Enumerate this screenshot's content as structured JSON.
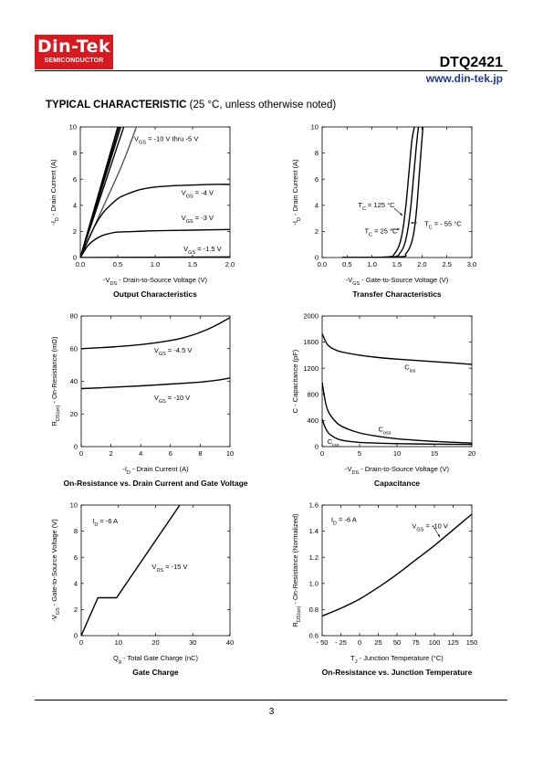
{
  "header": {
    "logo_name": "Din-Tek",
    "logo_sub": "SEMICONDUCTOR",
    "part_number": "DTQ2421",
    "url": "www.din-tek.jp",
    "logo_color": "#d8191f",
    "url_color": "#1f3c93"
  },
  "section": {
    "title": "TYPICAL CHARACTERISTIC",
    "note": "(25 °C, unless otherwise noted)"
  },
  "page_number": "3",
  "chart_data": [
    {
      "id": "output",
      "type": "line",
      "title": "Output Characteristics",
      "xlabel": "-V_DS - Drain-to-Source Voltage (V)",
      "ylabel": "-I_D - Drain Current (A)",
      "xlim": [
        0,
        2.0
      ],
      "ylim": [
        0,
        10
      ],
      "xticks": [
        "0.0",
        "0.5",
        "1.0",
        "1.5",
        "2.0"
      ],
      "yticks": [
        "0",
        "2",
        "4",
        "6",
        "8",
        "10"
      ],
      "series": [
        {
          "label": "V_GS = -10 V thru -5 V",
          "x": [
            0,
            0.25,
            0.5
          ],
          "y": [
            0,
            5,
            10
          ]
        },
        {
          "x": [
            0,
            0.26,
            0.52
          ],
          "y": [
            0,
            5,
            10
          ]
        },
        {
          "x": [
            0,
            0.27,
            0.54
          ],
          "y": [
            0,
            5,
            10
          ]
        },
        {
          "x": [
            0,
            0.29,
            0.58
          ],
          "y": [
            0,
            5,
            10
          ]
        },
        {
          "x": [
            0,
            0.3,
            0.55,
            0.75
          ],
          "y": [
            0,
            3.8,
            7.0,
            10
          ]
        },
        {
          "label": "V_GS = -4 V",
          "x": [
            0,
            0.1,
            0.2,
            0.3,
            0.4,
            0.5,
            0.6,
            0.8,
            1.0,
            1.25,
            1.5,
            1.75,
            2.0
          ],
          "y": [
            0,
            1.3,
            2.5,
            3.4,
            4.0,
            4.5,
            4.8,
            5.2,
            5.4,
            5.5,
            5.55,
            5.6,
            5.6
          ]
        },
        {
          "label": "V_GS = -3 V",
          "x": [
            0,
            0.1,
            0.2,
            0.3,
            0.4,
            0.5,
            0.75,
            1.0,
            1.5,
            2.0
          ],
          "y": [
            0,
            0.9,
            1.4,
            1.7,
            1.85,
            1.95,
            2.0,
            2.05,
            2.1,
            2.15
          ]
        },
        {
          "label": "V_GS = -1.5 V",
          "x": [
            0,
            2.0
          ],
          "y": [
            0,
            0.05
          ]
        }
      ]
    },
    {
      "id": "transfer",
      "type": "line",
      "title": "Transfer Characteristics",
      "xlabel": "-V_GS - Gate-to-Source Voltage (V)",
      "ylabel": "-I_D - Drain Current (A)",
      "xlim": [
        0,
        3.0
      ],
      "ylim": [
        0,
        10
      ],
      "xticks": [
        "0.0",
        "0.5",
        "1.0",
        "1.5",
        "2.0",
        "2.5",
        "3.0"
      ],
      "yticks": [
        "0",
        "2",
        "4",
        "6",
        "8",
        "10"
      ],
      "series": [
        {
          "label": "T_C = 125 °C",
          "x": [
            0.4,
            1.3,
            1.45,
            1.55,
            1.62,
            1.68,
            1.74,
            1.8,
            1.85
          ],
          "y": [
            0,
            0.05,
            0.3,
            1.0,
            2.2,
            4.0,
            6.5,
            9.0,
            10
          ]
        },
        {
          "label": "T_C = 25 °C",
          "x": [
            0.4,
            1.4,
            1.55,
            1.65,
            1.72,
            1.78,
            1.84,
            1.9,
            1.93
          ],
          "y": [
            0,
            0.05,
            0.3,
            1.0,
            2.2,
            4.0,
            6.5,
            9.0,
            10
          ]
        },
        {
          "label": "T_C = - 55 °C",
          "x": [
            0.4,
            1.55,
            1.68,
            1.78,
            1.85,
            1.9,
            1.95,
            2.0,
            2.02
          ],
          "y": [
            0,
            0.05,
            0.3,
            1.0,
            2.2,
            4.0,
            6.5,
            9.0,
            10
          ]
        }
      ]
    },
    {
      "id": "ron_id",
      "type": "line",
      "title": "On-Resistance vs. Drain Current and Gate Voltage",
      "xlabel": "-I_D - Drain Current (A)",
      "ylabel": "R_DS(on) - On-Resistance (mΩ)",
      "xlim": [
        0,
        10
      ],
      "ylim": [
        0,
        80
      ],
      "xticks": [
        "0",
        "2",
        "4",
        "6",
        "8",
        "10"
      ],
      "yticks": [
        "0",
        "20",
        "40",
        "60",
        "80"
      ],
      "series": [
        {
          "label": "V_GS = -4.5 V",
          "x": [
            0,
            2,
            4,
            6,
            7,
            8,
            9,
            10
          ],
          "y": [
            60,
            61,
            62.5,
            65,
            67,
            70,
            74,
            79
          ]
        },
        {
          "label": "V_GS = -10 V",
          "x": [
            0,
            2,
            4,
            6,
            8,
            9,
            10
          ],
          "y": [
            35.5,
            36.3,
            37.2,
            38.3,
            39.5,
            40.5,
            42
          ]
        }
      ]
    },
    {
      "id": "capacitance",
      "type": "line",
      "title": "Capacitance",
      "xlabel": "-V_DS - Drain-to-Source Voltage (V)",
      "ylabel": "C - Capacitance (pF)",
      "xlim": [
        0,
        20
      ],
      "ylim": [
        0,
        2000
      ],
      "xticks": [
        "0",
        "5",
        "10",
        "15",
        "20"
      ],
      "yticks": [
        "0",
        "400",
        "800",
        "1200",
        "1600",
        "2000"
      ],
      "series": [
        {
          "label": "C_iss",
          "x": [
            0,
            0.5,
            1,
            2,
            3,
            5,
            7,
            10,
            15,
            20
          ],
          "y": [
            1730,
            1600,
            1530,
            1470,
            1440,
            1400,
            1370,
            1340,
            1300,
            1260
          ]
        },
        {
          "label": "C_oss",
          "x": [
            0,
            0.5,
            1,
            2,
            3,
            5,
            7,
            10,
            15,
            20
          ],
          "y": [
            980,
            650,
            500,
            360,
            290,
            210,
            165,
            120,
            80,
            55
          ]
        },
        {
          "label": "C_rss",
          "x": [
            0,
            0.5,
            1,
            2,
            3,
            5,
            7,
            10,
            15,
            20
          ],
          "y": [
            420,
            270,
            190,
            120,
            90,
            65,
            55,
            45,
            38,
            33
          ]
        }
      ]
    },
    {
      "id": "gate_charge",
      "type": "line",
      "title": "Gate Charge",
      "xlabel": "Q_g - Total Gate Charge (nC)",
      "ylabel": "-V_GS - Gate-to-Source Voltage (V)",
      "xlim": [
        0,
        40
      ],
      "ylim": [
        0,
        10
      ],
      "xticks": [
        "0",
        "10",
        "20",
        "30",
        "40"
      ],
      "yticks": [
        "0",
        "2",
        "4",
        "6",
        "8",
        "10"
      ],
      "series": [
        {
          "x": [
            0,
            4.5,
            9.5,
            26.5
          ],
          "y": [
            0,
            2.9,
            2.9,
            10
          ]
        }
      ]
    },
    {
      "id": "ron_temp",
      "type": "line",
      "title": "On-Resistance vs. Junction Temperature",
      "xlabel": "T_J - Junction Temperature (°C)",
      "ylabel": "R_DS(on) - On-Resistance (Normalized)",
      "xlim": [
        -50,
        150
      ],
      "ylim": [
        0.6,
        1.6
      ],
      "xticks": [
        "- 50",
        "- 25",
        "0",
        "25",
        "50",
        "75",
        "100",
        "125",
        "150"
      ],
      "yticks": [
        "0.6",
        "0.8",
        "1.0",
        "1.2",
        "1.4",
        "1.6"
      ],
      "series": [
        {
          "x": [
            -50,
            -25,
            0,
            25,
            50,
            75,
            100,
            125,
            150
          ],
          "y": [
            0.75,
            0.81,
            0.88,
            0.97,
            1.07,
            1.18,
            1.29,
            1.41,
            1.53
          ]
        }
      ]
    }
  ],
  "annotations": {
    "output": [
      {
        "text": "V_GS = -10 V thru -5 V",
        "x": 0.72,
        "y": 8.9
      },
      {
        "text": "V_GS = -4 V",
        "x": 1.35,
        "y": 4.8
      },
      {
        "text": "V_GS = -3 V",
        "x": 1.35,
        "y": 2.85
      },
      {
        "text": "V_GS = -1.5 V",
        "x": 1.38,
        "y": 0.5
      }
    ],
    "transfer": [
      {
        "text": "T_C = 125 °C",
        "x": 0.72,
        "y": 3.85
      },
      {
        "text": "T_C = 25 °C",
        "x": 0.85,
        "y": 1.85
      },
      {
        "text": "T_C = - 55 °C",
        "x": 2.05,
        "y": 2.4
      }
    ],
    "ron_id": [
      {
        "text": "V_GS = -4.5 V",
        "x": 4.9,
        "y": 57.5
      },
      {
        "text": "V_GS = -10 V",
        "x": 4.9,
        "y": 28.5
      }
    ],
    "capacitance": [
      {
        "text": "C_iss",
        "x": 11,
        "y": 1180
      },
      {
        "text": "C_oss",
        "x": 7.5,
        "y": 230
      },
      {
        "text": "C_rss",
        "x": 0.7,
        "y": 40
      }
    ],
    "gate_charge": [
      {
        "text": "I_D = -6 A",
        "x": 3,
        "y": 8.6
      },
      {
        "text": "V_DS = -15 V",
        "x": 19,
        "y": 5.1
      }
    ],
    "ron_temp": [
      {
        "text": "I_D = -6 A",
        "x": -38,
        "y": 1.47
      },
      {
        "text": "V_GS = -10 V",
        "x": 70,
        "y": 1.42
      }
    ]
  }
}
